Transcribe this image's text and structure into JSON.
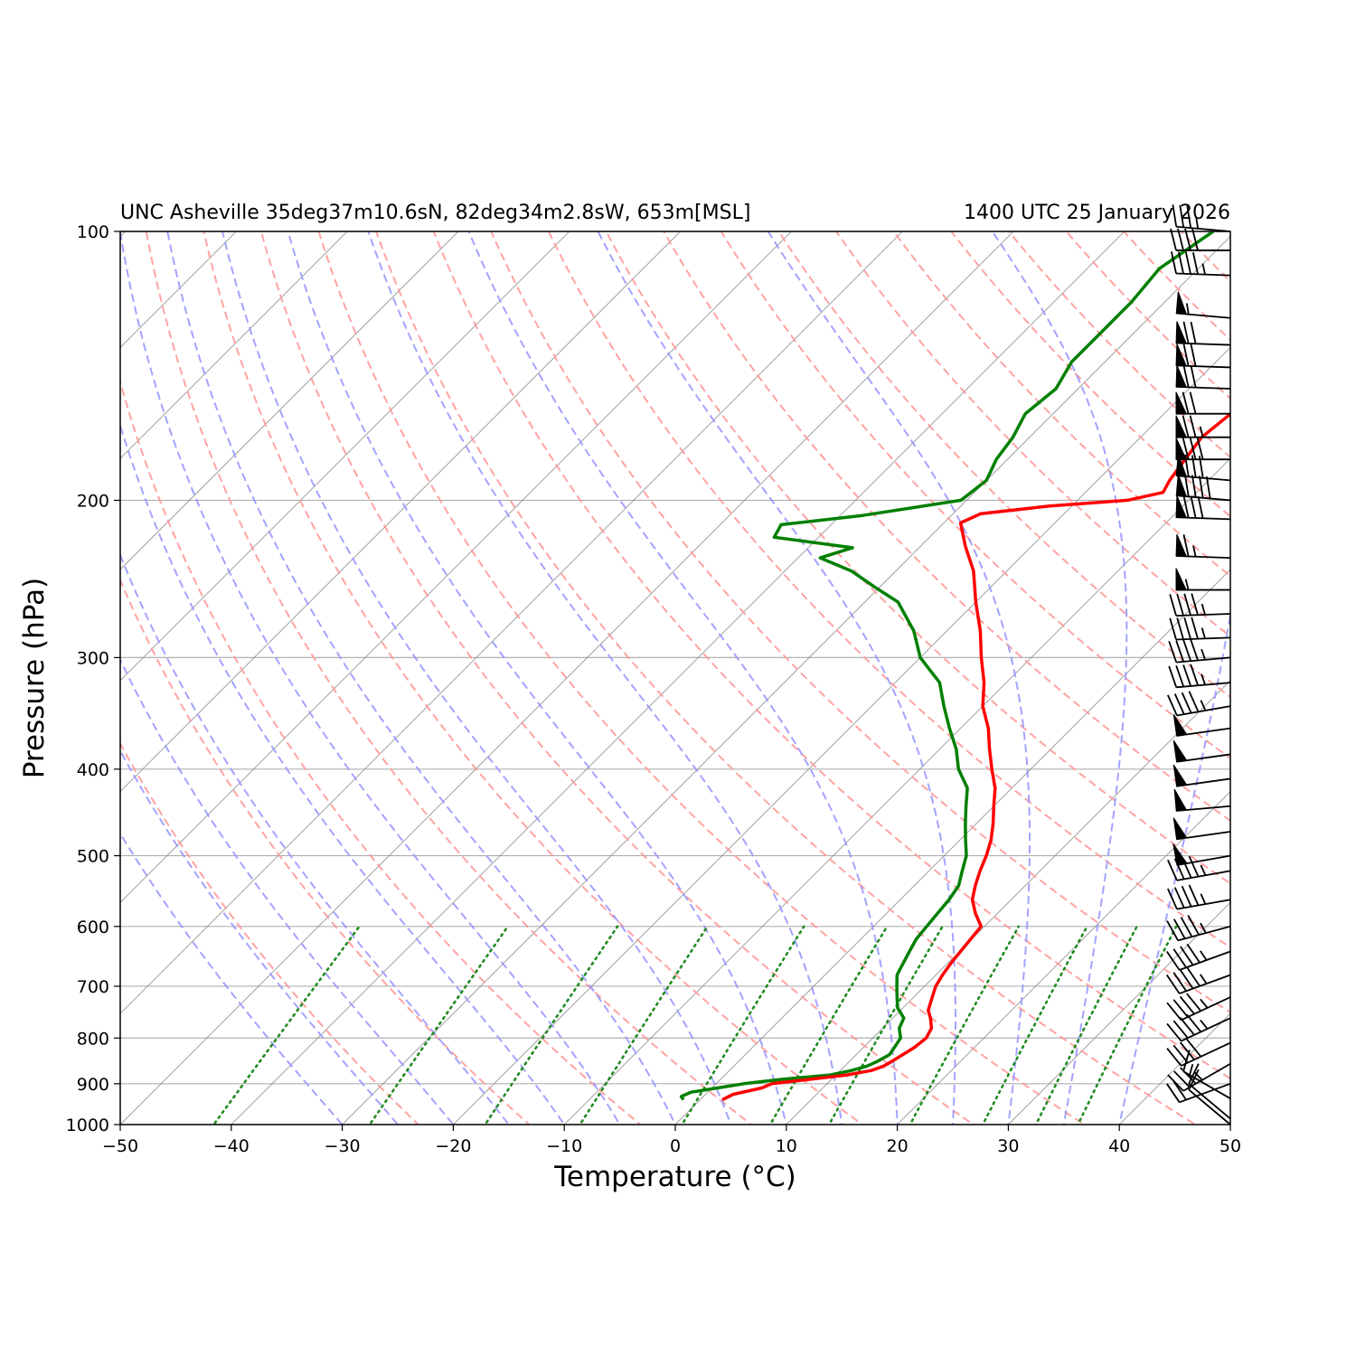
{
  "chart_data": {
    "type": "line",
    "chart_kind": "skew-T log-P",
    "title_left": "UNC Asheville 35deg37m10.6sN, 82deg34m2.8sW, 653m[MSL]",
    "title_right": "1400 UTC 25 January 2026",
    "xlabel": "Temperature (°C)",
    "ylabel": "Pressure (hPa)",
    "xlim": [
      -50,
      50
    ],
    "ylim": [
      1000,
      100
    ],
    "y_scale": "log",
    "x_ticks": [
      "−50",
      "−40",
      "−30",
      "−20",
      "−10",
      "0",
      "10",
      "20",
      "30",
      "40",
      "50"
    ],
    "x_tick_values": [
      -50,
      -40,
      -30,
      -20,
      -10,
      0,
      10,
      20,
      30,
      40,
      50
    ],
    "y_ticks": [
      "1000",
      "900",
      "800",
      "700",
      "600",
      "500",
      "400",
      "300",
      "200",
      "100"
    ],
    "y_tick_values": [
      1000,
      900,
      800,
      700,
      600,
      500,
      400,
      300,
      200,
      100
    ],
    "grid": true,
    "colors": {
      "temperature": "#ff0000",
      "dewpoint": "#008000",
      "isotherms": "#808080",
      "dry_adiabats": "#ff9999",
      "moist_adiabats": "#9999ff",
      "mixing_ratio": "#228b22",
      "barbs": "#000000"
    },
    "series": [
      {
        "role": "temperature",
        "pressure": [
          938,
          925,
          910,
          900,
          890,
          880,
          870,
          860,
          850,
          835,
          820,
          800,
          780,
          760,
          745,
          730,
          715,
          700,
          680,
          660,
          640,
          620,
          600,
          580,
          560,
          540,
          520,
          500,
          480,
          460,
          440,
          420,
          400,
          380,
          360,
          340,
          320,
          300,
          280,
          260,
          240,
          225,
          212,
          207,
          203,
          200,
          196,
          190,
          180,
          170,
          160,
          150,
          140,
          130,
          120,
          110,
          100
        ],
        "temperature": [
          2.0,
          2.5,
          4.5,
          5.0,
          8.0,
          11.0,
          12.8,
          13.5,
          13.8,
          14.2,
          14.6,
          14.8,
          14.4,
          13.4,
          12.5,
          12.0,
          11.5,
          11.0,
          10.6,
          10.3,
          10.1,
          9.9,
          9.7,
          8.0,
          6.5,
          5.5,
          4.6,
          3.8,
          2.8,
          1.5,
          0.0,
          -1.5,
          -3.5,
          -5.5,
          -7.5,
          -10.0,
          -12.0,
          -14.5,
          -17.0,
          -20.0,
          -23.0,
          -26.0,
          -28.5,
          -27.5,
          -22.0,
          -15.5,
          -13.0,
          -13.5,
          -14.0,
          -14.5,
          -14.0,
          -13.8,
          -12.5,
          -12.0,
          -10.5,
          -9.5,
          -8.5
        ]
      },
      {
        "role": "dewpoint",
        "pressure": [
          938,
          930,
          920,
          910,
          900,
          890,
          880,
          870,
          860,
          850,
          835,
          820,
          800,
          780,
          760,
          740,
          720,
          700,
          680,
          660,
          640,
          620,
          600,
          580,
          560,
          540,
          520,
          500,
          480,
          460,
          440,
          420,
          400,
          380,
          360,
          340,
          320,
          300,
          280,
          260,
          250,
          240,
          232,
          226,
          220,
          213,
          208,
          200,
          190,
          180,
          170,
          160,
          150,
          140,
          130,
          120,
          110,
          100
        ],
        "dewpoint": [
          -1.5,
          -2.0,
          -1.5,
          0.5,
          2.5,
          5.5,
          9.5,
          11.0,
          12.0,
          12.5,
          13.0,
          12.8,
          12.5,
          11.5,
          11.0,
          9.5,
          8.5,
          7.5,
          6.5,
          6.0,
          5.5,
          5.0,
          4.8,
          4.6,
          4.4,
          4.0,
          3.0,
          2.0,
          0.5,
          -1.0,
          -2.5,
          -4.0,
          -6.5,
          -8.5,
          -11.0,
          -13.5,
          -16.0,
          -20.0,
          -23.0,
          -27.0,
          -30.5,
          -34.0,
          -38.0,
          -36.0,
          -44.0,
          -44.5,
          -38.0,
          -30.5,
          -30.0,
          -31.0,
          -31.5,
          -32.5,
          -32.0,
          -33.0,
          -33.0,
          -33.0,
          -33.5,
          -32.0
        ]
      }
    ],
    "wind_barbs": {
      "pressure": [
        1000,
        985,
        935,
        900,
        855,
        810,
        760,
        720,
        680,
        640,
        600,
        560,
        520,
        500,
        470,
        440,
        410,
        385,
        360,
        340,
        320,
        300,
        285,
        268,
        252,
        232,
        210,
        200,
        190,
        180,
        170,
        160,
        150,
        142,
        134,
        125,
        112,
        105,
        100
      ],
      "speed_kt": [
        10,
        10,
        15,
        20,
        35,
        40,
        45,
        45,
        45,
        45,
        45,
        45,
        45,
        50,
        50,
        50,
        50,
        50,
        50,
        45,
        45,
        45,
        45,
        45,
        55,
        65,
        80,
        90,
        80,
        80,
        75,
        70,
        70,
        70,
        70,
        55,
        45,
        40,
        35
      ],
      "direction_deg": [
        310,
        310,
        300,
        250,
        240,
        245,
        245,
        245,
        250,
        250,
        255,
        260,
        260,
        260,
        262,
        265,
        262,
        262,
        262,
        260,
        265,
        265,
        268,
        268,
        270,
        272,
        272,
        275,
        275,
        270,
        270,
        270,
        272,
        272,
        272,
        275,
        272,
        270,
        275
      ]
    }
  }
}
